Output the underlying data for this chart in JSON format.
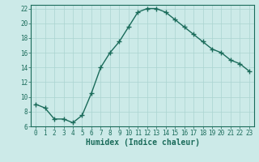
{
  "x": [
    0,
    1,
    2,
    3,
    4,
    5,
    6,
    7,
    8,
    9,
    10,
    11,
    12,
    13,
    14,
    15,
    16,
    17,
    18,
    19,
    20,
    21,
    22,
    23
  ],
  "y": [
    9,
    8.5,
    7,
    7,
    6.5,
    7.5,
    10.5,
    14,
    16,
    17.5,
    19.5,
    21.5,
    22,
    22,
    21.5,
    20.5,
    19.5,
    18.5,
    17.5,
    16.5,
    16,
    15,
    14.5,
    13.5
  ],
  "line_color": "#1a6b5a",
  "marker": "+",
  "bg_color": "#cceae8",
  "grid_color": "#aad4d0",
  "xlabel": "Humidex (Indice chaleur)",
  "xlim": [
    -0.5,
    23.5
  ],
  "ylim": [
    6,
    22.5
  ],
  "yticks": [
    6,
    8,
    10,
    12,
    14,
    16,
    18,
    20,
    22
  ],
  "xticks": [
    0,
    1,
    2,
    3,
    4,
    5,
    6,
    7,
    8,
    9,
    10,
    11,
    12,
    13,
    14,
    15,
    16,
    17,
    18,
    19,
    20,
    21,
    22,
    23
  ],
  "tick_fontsize": 5.5,
  "label_fontsize": 7,
  "linewidth": 1.0,
  "markersize": 4,
  "markeredgewidth": 1.0
}
